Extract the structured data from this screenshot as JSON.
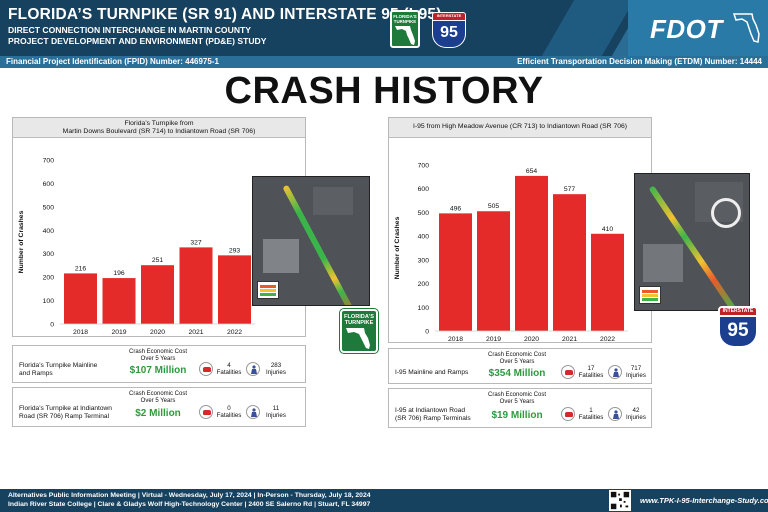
{
  "header": {
    "title": "FLORIDA’S TURNPIKE (SR 91) AND INTERSTATE 95 (I-95)",
    "subtitle1": "DIRECT CONNECTION INTERCHANGE IN MARTIN COUNTY",
    "subtitle2": "PROJECT DEVELOPMENT AND ENVIRONMENT (PD&E) STUDY",
    "turnpike_shield_text": "FLORIDA'S TURNPIKE",
    "i95_shield_top": "INTERSTATE",
    "i95_shield_number": "95",
    "logo_text": "FDOT",
    "fpid": "Financial Project Identification (FPID) Number: 446975-1",
    "etdm": "Efficient Transportation Decision Making (ETDM) Number: 14444",
    "colors": {
      "navy": "#16415f",
      "blue": "#2a6f98",
      "bar_red": "#e52a2a",
      "money_green": "#2e9a3e"
    }
  },
  "page_title": "CRASH HISTORY",
  "panels": {
    "left": {
      "title_line1": "Florida’s Turnpike from",
      "title_line2": "Martin Downs Boulevard (SR 714) to Indiantown Road (SR 706)",
      "shield_text": "FLORIDA'S TURNPIKE"
    },
    "right": {
      "title": "I-95 from High Meadow Avenue (CR 713) to Indiantown Road (SR 706)",
      "shield_top": "INTERSTATE",
      "shield_number": "95"
    }
  },
  "chart_data": [
    {
      "type": "bar",
      "title": "Florida’s Turnpike from Martin Downs Boulevard (SR 714) to Indiantown Road (SR 706)",
      "categories": [
        "2018",
        "2019",
        "2020",
        "2021",
        "2022"
      ],
      "values": [
        216,
        196,
        251,
        327,
        293
      ],
      "ylabel": "Number of Crashes",
      "ylim": [
        0,
        700
      ],
      "yticks": [
        0,
        100,
        200,
        300,
        400,
        500,
        600,
        700
      ],
      "data_labels": true,
      "grid": false
    },
    {
      "type": "bar",
      "title": "I-95 from High Meadow Avenue (CR 713) to Indiantown Road (SR 706)",
      "categories": [
        "2018",
        "2019",
        "2020",
        "2021",
        "2022"
      ],
      "values": [
        496,
        505,
        654,
        577,
        410
      ],
      "ylabel": "Number of Crashes",
      "ylim": [
        0,
        700
      ],
      "yticks": [
        0,
        100,
        200,
        300,
        400,
        500,
        600,
        700
      ],
      "data_labels": true,
      "grid": false
    }
  ],
  "cost_boxes": {
    "left_1": {
      "label_l1": "Florida’s Turnpike Mainline",
      "label_l2": "and Ramps",
      "head_l1": "Crash Economic Cost",
      "head_l2": "Over 5 Years",
      "cost": "$107 Million",
      "fatal_n": "4",
      "fatal_lbl": "Fatalities",
      "inj_n": "283",
      "inj_lbl": "Injuries"
    },
    "left_2": {
      "label_l1": "Florida’s Turnpike at Indiantown",
      "label_l2": "Road (SR 706) Ramp Terminal",
      "head_l1": "Crash Economic Cost",
      "head_l2": "Over 5 Years",
      "cost": "$2 Million",
      "fatal_n": "0",
      "fatal_lbl": "Fatalities",
      "inj_n": "11",
      "inj_lbl": "Injuries"
    },
    "right_1": {
      "label_l1": "I-95 Mainline and Ramps",
      "label_l2": "",
      "head_l1": "Crash Economic Cost",
      "head_l2": "Over 5 Years",
      "cost": "$354 Million",
      "fatal_n": "17",
      "fatal_lbl": "Fatalities",
      "inj_n": "717",
      "inj_lbl": "Injuries"
    },
    "right_2": {
      "label_l1": "I-95 at Indiantown Road",
      "label_l2": "(SR 706) Ramp Terminals",
      "head_l1": "Crash Economic Cost",
      "head_l2": "Over 5 Years",
      "cost": "$19 Million",
      "fatal_n": "1",
      "fatal_lbl": "Fatalities",
      "inj_n": "42",
      "inj_lbl": "Injuries"
    }
  },
  "footer": {
    "line1": "Alternatives Public Information Meeting | Virtual - Wednesday, July 17, 2024 | In-Person - Thursday, July 18, 2024",
    "line2": "Indian River State College | Clare & Gladys Wolf High-Technology Center | 2400 SE Salerno Rd | Stuart, FL 34997",
    "website": "www.TPK-I-95-Interchange-Study.com"
  }
}
